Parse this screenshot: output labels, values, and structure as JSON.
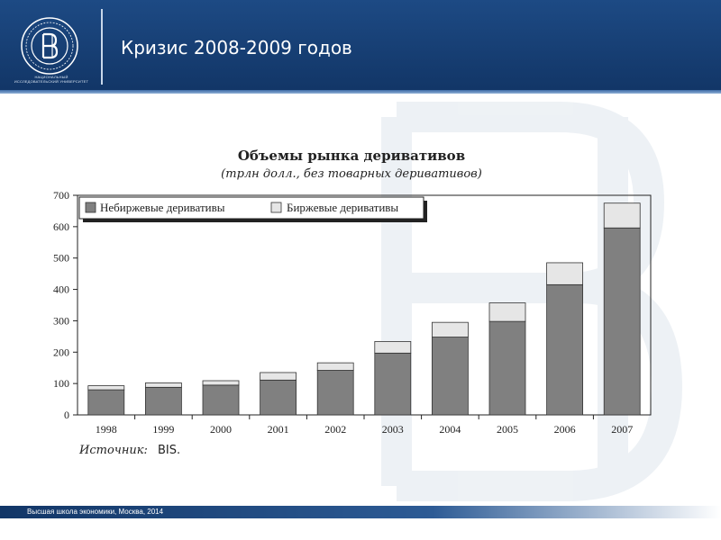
{
  "header": {
    "title": "Кризис 2008-2009 годов",
    "logo_caption": "НАЦИОНАЛЬНЫЙ ИССЛЕДОВАТЕЛЬСКИЙ УНИВЕРСИТЕТ",
    "logo_icon": "hse-logo-icon",
    "background_color": "#1a4279"
  },
  "footer": {
    "text": "Высшая школа экономики, Москва, 2014"
  },
  "source": {
    "label": "Источник:",
    "value": "BIS."
  },
  "chart_data": {
    "type": "bar",
    "stacked": true,
    "title": "Объемы рынка деривативов",
    "subtitle": "(трлн долл., без товарных деривативов)",
    "xlabel": "",
    "ylabel": "",
    "categories": [
      "1998",
      "1999",
      "2000",
      "2001",
      "2002",
      "2003",
      "2004",
      "2005",
      "2006",
      "2007"
    ],
    "series": [
      {
        "name": "Небиржевые деривативы",
        "color": "#808080",
        "values": [
          80,
          88,
          95,
          111,
          142,
          197,
          248,
          298,
          415,
          596
        ]
      },
      {
        "name": "Биржевые деривативы",
        "color": "#e6e6e6",
        "values": [
          13,
          14,
          14,
          24,
          24,
          37,
          47,
          59,
          70,
          79
        ]
      }
    ],
    "ylim": [
      0,
      700
    ],
    "yticks": [
      0,
      100,
      200,
      300,
      400,
      500,
      600,
      700
    ],
    "grid": false,
    "legend": "top-left"
  }
}
